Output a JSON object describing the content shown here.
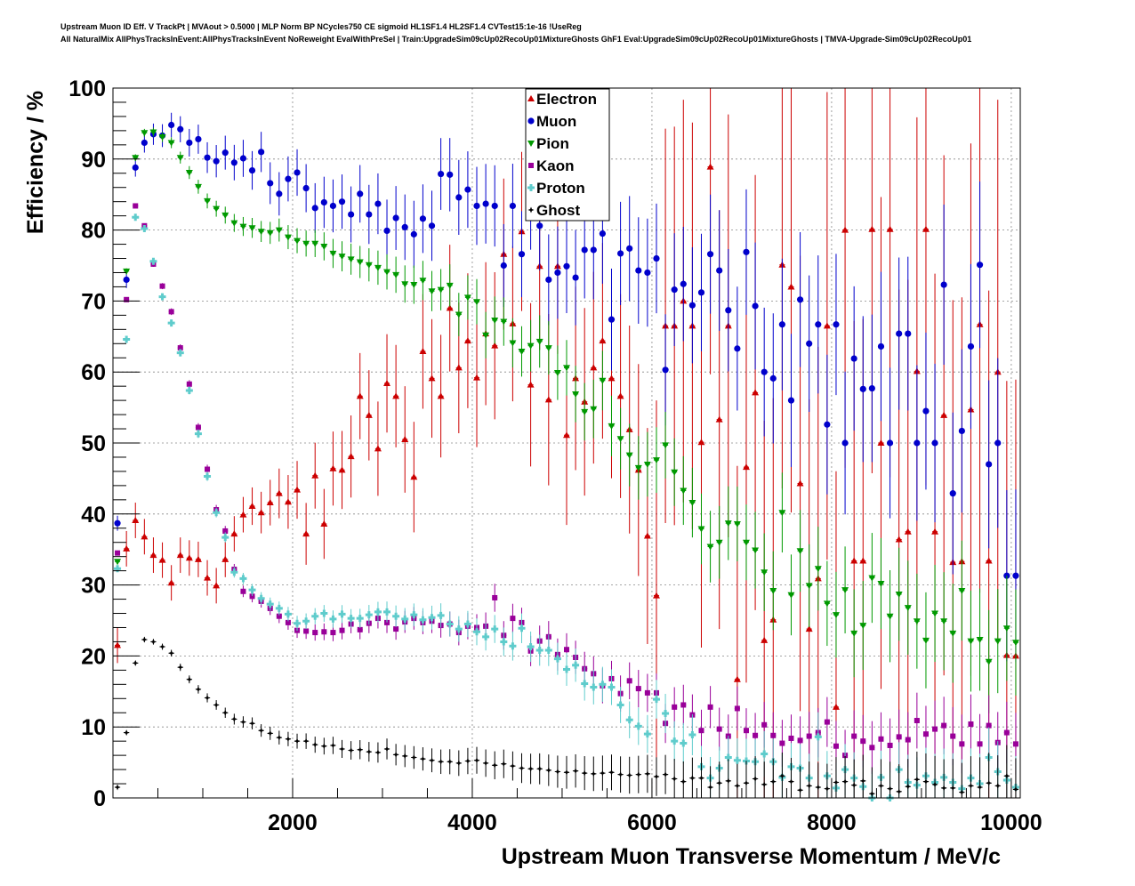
{
  "header": {
    "line1": "Upstream Muon ID Eff. V TrackPt | MVAout > 0.5000 | MLP Norm BP NCycles750 CE sigmoid HL1SF1.4 HL2SF1.4 CVTest15:1e-16 !UseReg",
    "line2": "All NaturalMix AllPhysTracksInEvent:AllPhysTracksInEvent NoReweight EvalWithPreSel | Train:UpgradeSim09cUp02RecoUp01MixtureGhosts GhF1 Eval:UpgradeSim09cUp02RecoUp01MixtureGhosts | TMVA-Upgrade-Sim09cUp02RecoUp01"
  },
  "chart_data": {
    "type": "scatter",
    "xlabel": "Upstream Muon Transverse Momentum / MeV/c",
    "ylabel": "Efficiency / %",
    "xlim": [
      0,
      10100
    ],
    "ylim": [
      0,
      100
    ],
    "x_ticks": [
      2000,
      4000,
      6000,
      8000,
      10000
    ],
    "y_ticks": [
      0,
      10,
      20,
      30,
      40,
      50,
      60,
      70,
      80,
      90,
      100
    ],
    "grid": true,
    "legend_position": "top-center",
    "x": [
      50,
      150,
      250,
      350,
      450,
      550,
      650,
      750,
      850,
      950,
      1050,
      1150,
      1250,
      1350,
      1450,
      1550,
      1650,
      1750,
      1850,
      1950,
      2050,
      2150,
      2250,
      2350,
      2450,
      2550,
      2650,
      2750,
      2850,
      2950,
      3050,
      3150,
      3250,
      3350,
      3450,
      3550,
      3650,
      3750,
      3850,
      3950,
      4050,
      4150,
      4250,
      4350,
      4450,
      4550,
      4650,
      4750,
      4850,
      4950,
      5050,
      5150,
      5250,
      5350,
      5450,
      5550,
      5650,
      5750,
      5850,
      5950,
      6050,
      6150,
      6250,
      6350,
      6450,
      6550,
      6650,
      6750,
      6850,
      6950,
      7050,
      7150,
      7250,
      7350,
      7450,
      7550,
      7650,
      7750,
      7850,
      7950,
      8050,
      8150,
      8250,
      8350,
      8450,
      8550,
      8650,
      8750,
      8850,
      8950,
      9050,
      9150,
      9250,
      9350,
      9450,
      9550,
      9650,
      9750,
      9850,
      9950,
      10050
    ],
    "series": [
      {
        "name": "Electron",
        "color": "#cc0000",
        "marker": "triangle-up",
        "values": [
          21.5,
          35.1,
          39.1,
          36.8,
          34.2,
          33.5,
          30.3,
          34.2,
          33.8,
          33.6,
          31,
          29.9,
          33.6,
          37.2,
          39.9,
          41.1,
          40.2,
          41.6,
          42.9,
          41.7,
          43.4,
          37.2,
          45.4,
          38.6,
          46.4,
          46.2,
          48.1,
          56.6,
          53.9,
          49.2,
          58.4,
          56.6,
          50.5,
          45.2,
          62.9,
          59.1,
          56.6,
          69,
          60.6,
          64.4,
          59.2,
          65.4,
          63.7,
          76.6,
          66.8,
          79.8,
          58.2,
          74.9,
          56.1,
          74.9,
          51.1,
          59.1,
          55.8,
          60.6,
          64.4,
          59.1,
          56.6,
          51.9,
          46.2,
          36.9,
          28.5,
          66.5,
          66.5,
          70,
          66.5,
          50.1,
          88.9,
          53.3,
          66.5,
          16.7,
          46.6,
          57.1,
          22.2,
          25.1,
          75.1,
          72,
          44.3,
          23.8,
          30.9,
          66.5,
          12.8,
          80,
          33.4,
          33.4,
          80.1,
          50,
          80.1,
          36.4,
          37.5,
          60.1,
          80.1,
          37.5,
          53.9,
          33.2,
          33.3,
          54.7,
          66.7,
          33.4,
          60,
          20.1,
          20
        ]
      },
      {
        "name": "Muon",
        "color": "#0000cc",
        "marker": "circle",
        "values": [
          38.7,
          73,
          88.8,
          92.3,
          93.5,
          93.3,
          94.8,
          94.2,
          92.3,
          92.8,
          90.2,
          89.7,
          90.9,
          89.5,
          90.1,
          88.4,
          91,
          86.6,
          85.1,
          87.2,
          88.1,
          85.9,
          83.1,
          83.9,
          83.4,
          84,
          82.2,
          85.1,
          82.2,
          83.7,
          79.9,
          81.7,
          80.4,
          79.4,
          81.6,
          80.6,
          87.9,
          87.8,
          84.6,
          85.7,
          83.4,
          83.7,
          83.4,
          75,
          83.4,
          76.6,
          83.4,
          80.6,
          73,
          74,
          74.9,
          73.3,
          77.2,
          77.2,
          79.5,
          67.4,
          76.7,
          77.4,
          74.3,
          74,
          76,
          60.3,
          71.6,
          72.4,
          69.4,
          71.2,
          76.6,
          74.3,
          68.7,
          63.3,
          76.9,
          69.3,
          60,
          59.1,
          66.7,
          56,
          70.2,
          64,
          66.7,
          52.6,
          66.7,
          50,
          61.9,
          57.6,
          57.7,
          63.6,
          50,
          65.4,
          65.4,
          50,
          54.5,
          50,
          72.3,
          42.9,
          51.7,
          63.6,
          75.1,
          47,
          50,
          31.3,
          31.3
        ]
      },
      {
        "name": "Pion",
        "color": "#009900",
        "marker": "triangle-down",
        "values": [
          33.3,
          74.2,
          90.2,
          93.7,
          93.8,
          93.1,
          92.3,
          90.2,
          88.1,
          86.1,
          84.1,
          83,
          82.1,
          81,
          80.5,
          80.3,
          79.8,
          79.6,
          80,
          79,
          78.5,
          78.1,
          78.1,
          77.7,
          76.7,
          76.3,
          75.9,
          75.5,
          75.1,
          74.7,
          74.1,
          73.7,
          72.4,
          72.3,
          72.9,
          71.4,
          71.6,
          72.2,
          68.1,
          70.5,
          69.9,
          65.2,
          67.3,
          67.1,
          64.1,
          62.9,
          63.7,
          64.3,
          63.4,
          59.9,
          60.6,
          56.9,
          54.4,
          54.8,
          58.8,
          52.4,
          50.6,
          48.3,
          46.5,
          47,
          47.6,
          49.7,
          45.9,
          43.3,
          41.6,
          37.9,
          35.4,
          36,
          38.7,
          38.6,
          36,
          34.9,
          31.8,
          29.2,
          40.2,
          28.6,
          34.8,
          29.9,
          32.3,
          27.4,
          25.8,
          29.3,
          23.2,
          24.3,
          31,
          30.2,
          25.6,
          28.7,
          26.8,
          24.9,
          22.2,
          26,
          24.9,
          23.2,
          29.2,
          22.1,
          22.3,
          19.2,
          22.1,
          23.9,
          21.9
        ]
      },
      {
        "name": "Kaon",
        "color": "#990099",
        "marker": "square",
        "values": [
          34.5,
          70.2,
          83.4,
          80.6,
          75.2,
          72.1,
          68.5,
          63.4,
          58.3,
          52.2,
          46.3,
          40.6,
          37.6,
          32.2,
          29.1,
          28.4,
          27.7,
          26.7,
          25.6,
          24.7,
          23.6,
          23.5,
          23.3,
          23.4,
          23.3,
          23.6,
          24.5,
          23.7,
          24.6,
          25.3,
          24.7,
          23.8,
          24.8,
          25.3,
          24.7,
          24.9,
          24.3,
          24.5,
          23.3,
          24.2,
          24,
          24.2,
          28.2,
          22.9,
          25.3,
          24.7,
          20.7,
          22.1,
          22.7,
          20.2,
          20.9,
          19.8,
          18.2,
          17.5,
          15.8,
          16.8,
          14.7,
          16.5,
          15.4,
          14.8,
          14.8,
          10.5,
          12.8,
          13.1,
          11.7,
          9.5,
          12.8,
          9.7,
          8.7,
          12.6,
          9.5,
          8.8,
          10.3,
          8.8,
          7.7,
          8.4,
          8.1,
          8.7,
          9.2,
          10.7,
          7.3,
          6,
          8.7,
          8,
          7.1,
          8.3,
          7.4,
          8.6,
          8.2,
          10.9,
          9,
          9.7,
          10.2,
          8.7,
          7.6,
          10.4,
          7.6,
          10.2,
          7.8,
          9.2,
          7.6
        ]
      },
      {
        "name": "Proton",
        "color": "#5fcccc",
        "marker": "cross",
        "values": [
          32.3,
          64.6,
          81.8,
          80.2,
          75.6,
          70.6,
          66.9,
          62.7,
          57.4,
          51.3,
          45.3,
          40.2,
          36.7,
          31.8,
          30.9,
          29.3,
          28.1,
          27.3,
          26.7,
          25.9,
          24.6,
          24.9,
          25.6,
          26,
          25.2,
          25.9,
          25.3,
          25.3,
          25.8,
          26.2,
          26.2,
          25.6,
          25.2,
          25.8,
          25.1,
          25.4,
          25.7,
          24.5,
          23.8,
          24.5,
          23.4,
          22.7,
          23.8,
          22,
          21.4,
          23.9,
          21.3,
          20.8,
          20.8,
          19.6,
          18.1,
          18.7,
          16.1,
          15.6,
          16,
          15.6,
          13.1,
          11,
          10.1,
          9,
          13.9,
          11.9,
          8,
          7.7,
          8.9,
          4.4,
          2.8,
          4.2,
          5.7,
          5.3,
          5.2,
          5.1,
          6.2,
          5.1,
          2.9,
          4.4,
          4.2,
          2.8,
          8.6,
          3.1,
          1.4,
          4,
          2.8,
          1.6,
          0,
          2.9,
          0,
          4,
          2.2,
          1.8,
          3.1,
          2.2,
          2.9,
          2.2,
          1.3,
          2.8,
          2,
          5.7,
          3.7,
          2.5,
          1.5
        ]
      },
      {
        "name": "Ghost",
        "color": "#000000",
        "marker": "star",
        "values": [
          1.5,
          9.2,
          19,
          22.3,
          22,
          21.3,
          20.4,
          18.4,
          16.7,
          15.3,
          14.1,
          13.1,
          12,
          11.1,
          10.7,
          10.5,
          9.5,
          9.1,
          8.5,
          8.3,
          8,
          8,
          7.5,
          7.3,
          7.4,
          6.9,
          6.7,
          6.8,
          6.5,
          6.4,
          6.9,
          6.1,
          5.9,
          5.7,
          5.5,
          5.3,
          5.1,
          5.1,
          4.9,
          5.2,
          5.3,
          4.9,
          4.6,
          4.8,
          4.5,
          4.2,
          4.1,
          4.1,
          3.9,
          3.7,
          3.6,
          3.8,
          3.5,
          3.4,
          3.5,
          3.6,
          3.3,
          3.2,
          3.3,
          3.4,
          3,
          3.3,
          2.7,
          2.3,
          2.8,
          2.8,
          1.5,
          2.1,
          2.4,
          1.7,
          2.1,
          2.7,
          1.9,
          2.3,
          3.1,
          2.3,
          1.1,
          1.7,
          1.5,
          1.3,
          2.2,
          2.3,
          1.8,
          2.4,
          0.6,
          1.7,
          1.3,
          0.9,
          1.6,
          2.6,
          2.3,
          1.9,
          1.4,
          1.4,
          0.8,
          1.7,
          1.5,
          2.1,
          1.7,
          3.1,
          1.2
        ]
      }
    ]
  }
}
